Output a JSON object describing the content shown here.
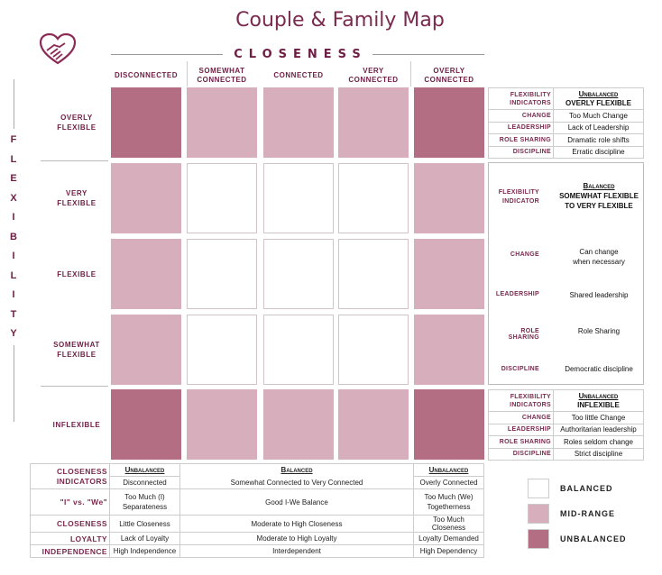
{
  "title": "Couple & Family Map",
  "axes": {
    "closeness_label": "CLOSENESS",
    "flexibility_letters": [
      "F",
      "L",
      "E",
      "X",
      "I",
      "B",
      "I",
      "L",
      "I",
      "T",
      "Y"
    ]
  },
  "colors": {
    "title": "#7a2a4e",
    "balanced": "#ffffff",
    "mid_range": "#d7aebb",
    "unbalanced": "#b46e83"
  },
  "columns": [
    {
      "label": "DISCONNECTED"
    },
    {
      "label": "SOMEWHAT CONNECTED"
    },
    {
      "label": "CONNECTED"
    },
    {
      "label": "VERY CONNECTED"
    },
    {
      "label": "OVERLY CONNECTED"
    }
  ],
  "rows": [
    {
      "label": "OVERLY FLEXIBLE",
      "cells": [
        "unbalanced",
        "mid",
        "mid",
        "mid",
        "unbalanced"
      ]
    },
    {
      "label": "VERY FLEXIBLE",
      "cells": [
        "mid",
        "balanced",
        "balanced",
        "balanced",
        "mid"
      ]
    },
    {
      "label": "FLEXIBLE",
      "cells": [
        "mid",
        "balanced",
        "balanced",
        "balanced",
        "mid"
      ]
    },
    {
      "label": "SOMEWHAT FLEXIBLE",
      "cells": [
        "mid",
        "balanced",
        "balanced",
        "balanced",
        "mid"
      ]
    },
    {
      "label": "INFLEXIBLE",
      "cells": [
        "unbalanced",
        "mid",
        "mid",
        "mid",
        "unbalanced"
      ]
    }
  ],
  "flex_top": {
    "header_key": "FLEXIBILITY INDICATORS",
    "header_type": "Unbalanced",
    "header_value": "OVERLY FLEXIBLE",
    "items": [
      {
        "key": "CHANGE",
        "value": "Too Much Change"
      },
      {
        "key": "LEADERSHIP",
        "value": "Lack of Leadership"
      },
      {
        "key": "ROLE SHARING",
        "value": "Dramatic role shifts"
      },
      {
        "key": "DISCIPLINE",
        "value": "Erratic discipline"
      }
    ]
  },
  "flex_mid": {
    "header_key": "FLEXIBILITY INDICATOR",
    "header_type": "Balanced",
    "header_value": "SOMEWHAT FLEXIBLE TO VERY FLEXIBLE",
    "items": [
      {
        "key": "CHANGE",
        "value": "Can change when necessary"
      },
      {
        "key": "LEADERSHIP",
        "value": "Shared leadership"
      },
      {
        "key": "ROLE SHARING",
        "value": "Role Sharing"
      },
      {
        "key": "DISCIPLINE",
        "value": "Democratic discipline"
      }
    ]
  },
  "flex_bottom": {
    "header_key": "FLEXIBILITY INDICATORS",
    "header_type": "Unbalanced",
    "header_value": "INFLEXIBLE",
    "items": [
      {
        "key": "CHANGE",
        "value": "Too little Change"
      },
      {
        "key": "LEADERSHIP",
        "value": "Authoritarian leadership"
      },
      {
        "key": "ROLE SHARING",
        "value": "Roles seldom change"
      },
      {
        "key": "DISCIPLINE",
        "value": "Strict discipline"
      }
    ]
  },
  "closeness_table": {
    "header_key": "CLOSENESS INDICATORS",
    "col_types": [
      "Unbalanced",
      "Balanced",
      "Unbalanced"
    ],
    "header_values": [
      "Disconnected",
      "Somewhat Connected to Very Connected",
      "Overly Connected"
    ],
    "rows": [
      {
        "key": "\"I\" vs. \"We\"",
        "values": [
          "Too Much (I) Separateness",
          "Good I-We Balance",
          "Too Much (We) Togetherness"
        ]
      },
      {
        "key": "CLOSENESS",
        "values": [
          "Little Closeness",
          "Moderate to High Closeness",
          "Too Much Closeness"
        ]
      },
      {
        "key": "LOYALTY",
        "values": [
          "Lack of Loyalty",
          "Moderate to High Loyalty",
          "Loyalty Demanded"
        ]
      },
      {
        "key": "INDEPENDENCE",
        "values": [
          "High Independence",
          "Interdependent",
          "High Dependency"
        ]
      }
    ]
  },
  "legend": [
    {
      "label": "BALANCED",
      "color": "#ffffff"
    },
    {
      "label": "MID-RANGE",
      "color": "#d7aebb"
    },
    {
      "label": "UNBALANCED",
      "color": "#b46e83"
    }
  ]
}
